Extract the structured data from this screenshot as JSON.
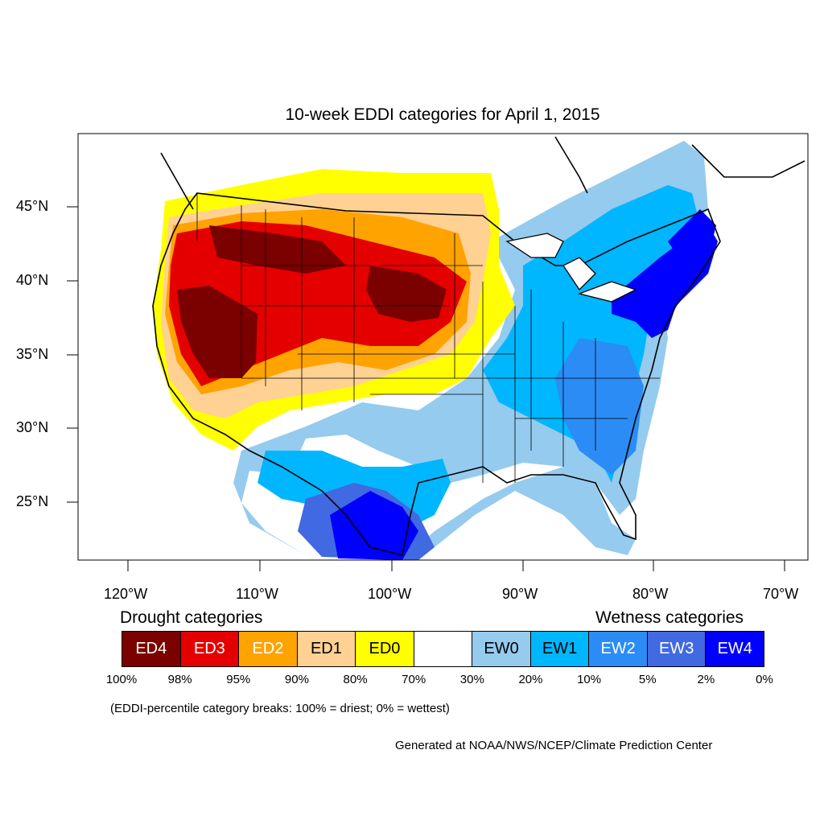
{
  "map": {
    "title": "10-week EDDI categories for April 1, 2015",
    "lat_labels": [
      "45°N",
      "40°N",
      "35°N",
      "30°N",
      "25°N"
    ],
    "lon_labels": [
      "120°W",
      "110°W",
      "100°W",
      "90°W",
      "80°W",
      "70°W"
    ]
  },
  "legend": {
    "drought_heading": "Drought categories",
    "wetness_heading": "Wetness categories",
    "categories": [
      {
        "label": "ED4",
        "color": "#7b0000",
        "text_color": "#ffffff"
      },
      {
        "label": "ED3",
        "color": "#e50000",
        "text_color": "#ffffff"
      },
      {
        "label": "ED2",
        "color": "#ffa300",
        "text_color": "#ffffff"
      },
      {
        "label": "ED1",
        "color": "#ffd192",
        "text_color": "#000000"
      },
      {
        "label": "ED0",
        "color": "#ffff00",
        "text_color": "#000000"
      },
      {
        "label": "",
        "color": "#ffffff",
        "text_color": "#000000"
      },
      {
        "label": "EW0",
        "color": "#95cbee",
        "text_color": "#000000"
      },
      {
        "label": "EW1",
        "color": "#00b6ff",
        "text_color": "#000000"
      },
      {
        "label": "EW2",
        "color": "#2b8cf5",
        "text_color": "#ffffff"
      },
      {
        "label": "EW3",
        "color": "#4169e1",
        "text_color": "#ffffff"
      },
      {
        "label": "EW4",
        "color": "#0000ff",
        "text_color": "#ffffff"
      }
    ],
    "breaks": [
      "100%",
      "98%",
      "95%",
      "90%",
      "80%",
      "70%",
      "30%",
      "20%",
      "10%",
      "5%",
      "2%",
      "0%"
    ],
    "note": "(EDDI-percentile category breaks: 100% = driest; 0% = wettest)"
  },
  "credit": "Generated at NOAA/NWS/NCEP/Climate Prediction Center"
}
